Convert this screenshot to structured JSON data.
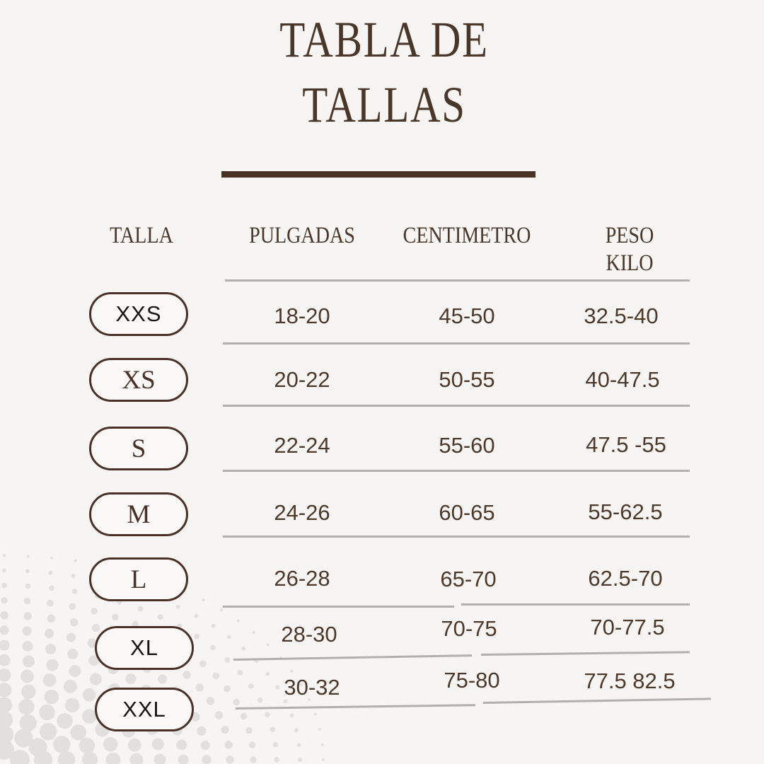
{
  "title": {
    "line1": "TABLA DE",
    "line2": "TALLAS"
  },
  "header": {
    "peso": "PESO",
    "kilo": "KILO"
  },
  "colors": {
    "background": "#f6f5f3",
    "title_brown": "#4a3729",
    "thick_rule": "#4a3126",
    "pill_border": "#4a3026",
    "pill_background": "#faf9f8",
    "pill_label_dark": "#181411",
    "value_text": "#4e382a",
    "divider_gray": "#b2b0ae",
    "halftone_dots": "#e1e0de"
  },
  "chart_data": {
    "type": "table",
    "title": "TABLA DE TALLAS",
    "columns": [
      "TALLA",
      "PULGADAS",
      "CENTIMETRO",
      "PESO KILO"
    ],
    "rows": [
      [
        "XXS",
        "18-20",
        "45-50",
        "32.5-40"
      ],
      [
        "XS",
        "20-22",
        "50-55",
        "40-47.5"
      ],
      [
        "S",
        "22-24",
        "55-60",
        "47.5 -55"
      ],
      [
        "M",
        "24-26",
        "60-65",
        "55-62.5"
      ],
      [
        "L",
        "26-28",
        "65-70",
        "62.5-70"
      ],
      [
        "XL",
        "28-30",
        "70-75",
        "70-77.5"
      ],
      [
        "XXL",
        "30-32",
        "75-80",
        "77.5 82.5"
      ]
    ]
  }
}
